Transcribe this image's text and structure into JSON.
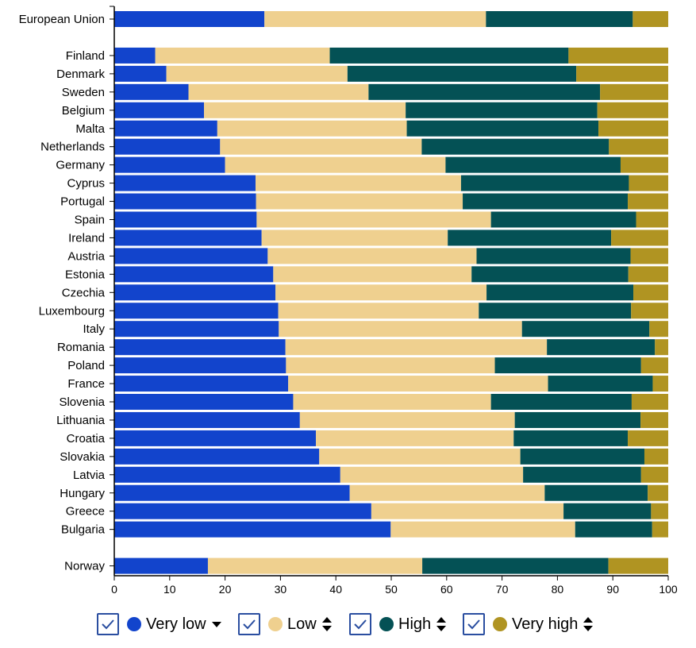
{
  "chart_data": {
    "type": "bar",
    "orientation": "horizontal",
    "stacked": true,
    "categories": [
      "European Union",
      "Finland",
      "Denmark",
      "Sweden",
      "Belgium",
      "Malta",
      "Netherlands",
      "Germany",
      "Cyprus",
      "Portugal",
      "Spain",
      "Ireland",
      "Austria",
      "Estonia",
      "Czechia",
      "Luxembourg",
      "Italy",
      "Romania",
      "Poland",
      "France",
      "Slovenia",
      "Lithuania",
      "Croatia",
      "Slovakia",
      "Latvia",
      "Hungary",
      "Greece",
      "Bulgaria",
      "Norway"
    ],
    "groups_after": [
      0,
      27
    ],
    "series": [
      {
        "name": "Very low",
        "color": "#1244cc",
        "values": [
          27.1,
          7.4,
          9.4,
          13.4,
          16.2,
          18.6,
          19.1,
          20.0,
          25.5,
          25.6,
          25.7,
          26.6,
          27.7,
          28.7,
          29.1,
          29.6,
          29.7,
          30.9,
          31.0,
          31.4,
          32.3,
          33.5,
          36.4,
          37.0,
          40.8,
          42.5,
          46.4,
          49.9,
          16.9
        ]
      },
      {
        "name": "Low",
        "color": "#efd08f",
        "values": [
          40.0,
          31.5,
          32.7,
          32.5,
          36.4,
          34.2,
          36.4,
          39.8,
          37.1,
          37.3,
          42.3,
          33.6,
          37.7,
          35.8,
          38.1,
          36.2,
          43.9,
          47.2,
          37.7,
          46.9,
          35.7,
          38.8,
          35.7,
          36.3,
          33.0,
          35.2,
          34.7,
          33.3,
          38.7
        ]
      },
      {
        "name": "High",
        "color": "#045155",
        "values": [
          26.5,
          43.1,
          41.3,
          41.8,
          34.6,
          34.6,
          33.8,
          31.6,
          30.3,
          29.8,
          26.2,
          29.5,
          27.8,
          28.3,
          26.5,
          27.5,
          23.0,
          19.5,
          26.4,
          18.9,
          25.4,
          22.7,
          20.6,
          22.4,
          21.3,
          18.6,
          15.8,
          13.9,
          33.6
        ]
      },
      {
        "name": "Very high",
        "color": "#b09422",
        "values": [
          6.4,
          18.0,
          16.6,
          12.3,
          12.8,
          12.6,
          10.7,
          8.6,
          7.1,
          7.3,
          5.8,
          10.3,
          6.8,
          7.2,
          6.3,
          6.7,
          3.4,
          2.4,
          4.9,
          2.8,
          6.6,
          5.0,
          7.3,
          4.3,
          4.9,
          3.7,
          3.1,
          2.9,
          10.8
        ]
      }
    ],
    "xlim": [
      0,
      100
    ],
    "xticks": [
      "0",
      "10",
      "20",
      "30",
      "40",
      "50",
      "60",
      "70",
      "80",
      "90",
      "100"
    ],
    "title": "",
    "xlabel": "",
    "ylabel": ""
  },
  "legend": {
    "items": [
      {
        "label": "Very low",
        "checked": true,
        "sort": "sorted-descending"
      },
      {
        "label": "Low",
        "checked": true,
        "sort": "sortable"
      },
      {
        "label": "High",
        "checked": true,
        "sort": "sortable"
      },
      {
        "label": "Very high",
        "checked": true,
        "sort": "sortable"
      }
    ]
  }
}
